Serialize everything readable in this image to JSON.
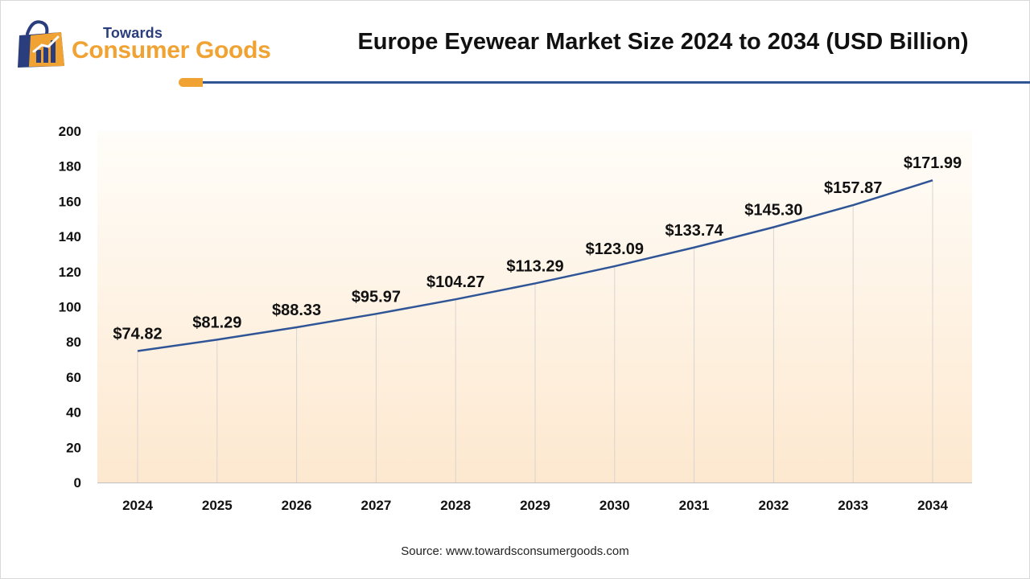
{
  "header": {
    "brand_top": "Towards",
    "brand_main": "Consumer Goods",
    "title": "Europe Eyewear Market Size 2024 to 2034 (USD Billion)"
  },
  "footer": {
    "source": "Source: www.towardsconsumergoods.com"
  },
  "colors": {
    "line": "#2f5597",
    "accent": "#f0a232",
    "brand_navy": "#2a3d7c",
    "plot_gradient_top": "#fffdf9",
    "plot_gradient_bottom": "#fde8cf"
  },
  "chart_data": {
    "type": "line",
    "title": "Europe Eyewear Market Size 2024 to 2034 (USD Billion)",
    "xlabel": "",
    "ylabel": "",
    "categories": [
      "2024",
      "2025",
      "2026",
      "2027",
      "2028",
      "2029",
      "2030",
      "2031",
      "2032",
      "2033",
      "2034"
    ],
    "series": [
      {
        "values": [
          74.82,
          81.29,
          88.33,
          95.97,
          104.27,
          113.29,
          123.09,
          133.74,
          145.3,
          157.87,
          171.99
        ],
        "labels": [
          "$74.82",
          "$81.29",
          "$88.33",
          "$95.97",
          "$104.27",
          "$113.29",
          "$123.09",
          "$133.74",
          "$145.30",
          "$157.87",
          "$171.99"
        ]
      }
    ],
    "ylim": [
      0,
      200
    ],
    "yticks": [
      "0",
      "20",
      "40",
      "60",
      "80",
      "100",
      "120",
      "140",
      "160",
      "180",
      "200"
    ],
    "grid": "vertical lines at categories",
    "legend": "none"
  }
}
